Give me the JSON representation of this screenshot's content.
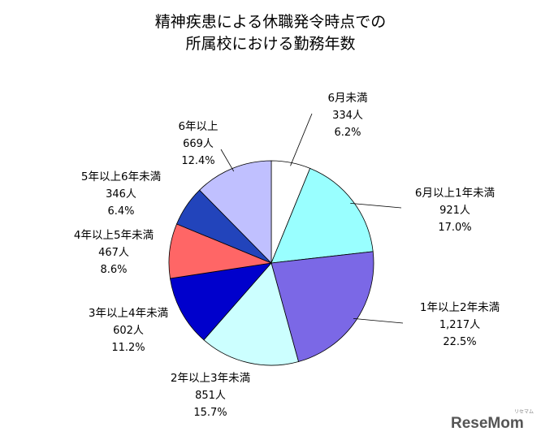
{
  "chart_data": {
    "type": "pie",
    "title_lines": [
      "精神疾患による休職発令時点での",
      "所属校における勤務年数"
    ],
    "start_angle_deg": 0,
    "direction": "clockwise",
    "slices": [
      {
        "label": "6月未満",
        "count": "334人",
        "percent": "6.2%",
        "value": 334,
        "color": "#ffffff"
      },
      {
        "label": "6月以上1年未満",
        "count": "921人",
        "percent": "17.0%",
        "value": 921,
        "color": "#99ffff"
      },
      {
        "label": "1年以上2年未満",
        "count": "1,217人",
        "percent": "22.5%",
        "value": 1217,
        "color": "#7b68e6"
      },
      {
        "label": "2年以上3年未満",
        "count": "851人",
        "percent": "15.7%",
        "value": 851,
        "color": "#ccffff"
      },
      {
        "label": "3年以上4年未満",
        "count": "602人",
        "percent": "11.2%",
        "value": 602,
        "color": "#0000cc"
      },
      {
        "label": "4年以上5年未満",
        "count": "467人",
        "percent": "8.6%",
        "value": 467,
        "color": "#ff6666"
      },
      {
        "label": "5年以上6年未満",
        "count": "346人",
        "percent": "6.4%",
        "value": 346,
        "color": "#2244bb"
      },
      {
        "label": "6年以上",
        "count": "669人",
        "percent": "12.4%",
        "value": 669,
        "color": "#c0c0ff"
      }
    ]
  },
  "watermark": {
    "text": "ReseMom",
    "ribbon": "リセマム",
    "color": "#555555",
    "accent": "#f0a000"
  }
}
